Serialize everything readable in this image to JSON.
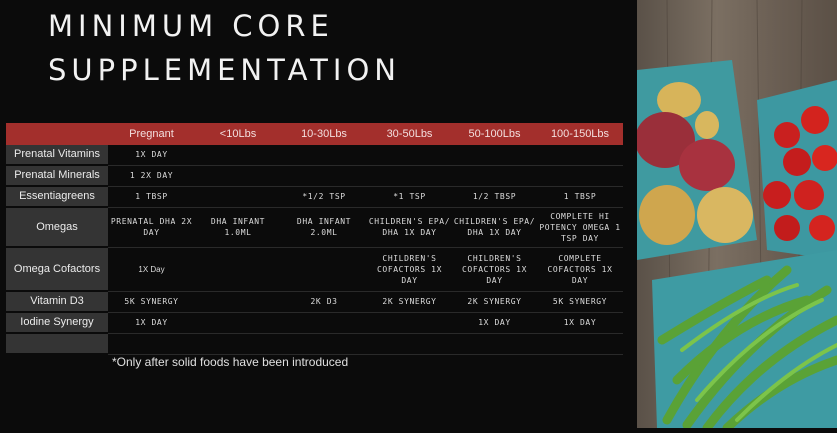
{
  "title_line1": "MINIMUM CORE",
  "title_line2": "SUPPLEMENTATION",
  "columns": [
    "",
    "Pregnant",
    "<10Lbs",
    "10-30Lbs",
    "30-50Lbs",
    "50-100Lbs",
    "100-150Lbs"
  ],
  "rows": [
    {
      "label": "Prenatal Vitamins",
      "cells": [
        "1X DAY",
        "",
        "",
        "",
        "",
        ""
      ]
    },
    {
      "label": "Prenatal Minerals",
      "cells": [
        "1 2X DAY",
        "",
        "",
        "",
        "",
        ""
      ]
    },
    {
      "label": "Essentiagreens",
      "cells": [
        "1 TBSP",
        "",
        "*1/2 TSP",
        "*1 TSP",
        "1/2 TBSP",
        "1 TBSP"
      ]
    },
    {
      "label": "Omegas",
      "cells": [
        "PRENATAL DHA 2X DAY",
        "DHA INFANT 1.0ML",
        "DHA INFANT 2.0ML",
        "CHILDREN'S EPA/ DHA 1X DAY",
        "CHILDREN'S EPA/ DHA 1X DAY",
        "COMPLETE HI POTENCY OMEGA 1 TSP DAY"
      ]
    },
    {
      "label": "Omega Cofactors",
      "cells": [
        "1X Day",
        "",
        "",
        "CHILDREN'S COFACTORS 1X DAY",
        "CHILDREN'S COFACTORS 1X DAY",
        "COMPLETE COFACTORS 1X DAY"
      ]
    },
    {
      "label": "Vitamin D3",
      "cells": [
        "5K SYNERGY",
        "",
        "2K D3",
        "2K SYNERGY",
        "2K SYNERGY",
        "5K SYNERGY"
      ]
    },
    {
      "label": "Iodine Synergy",
      "cells": [
        "1X DAY",
        "",
        "",
        "",
        "1X DAY",
        "1X DAY"
      ]
    },
    {
      "label": "",
      "cells": [
        "",
        "",
        "",
        "",
        "",
        ""
      ]
    }
  ],
  "footnote": "*Only after solid foods have been introduced"
}
